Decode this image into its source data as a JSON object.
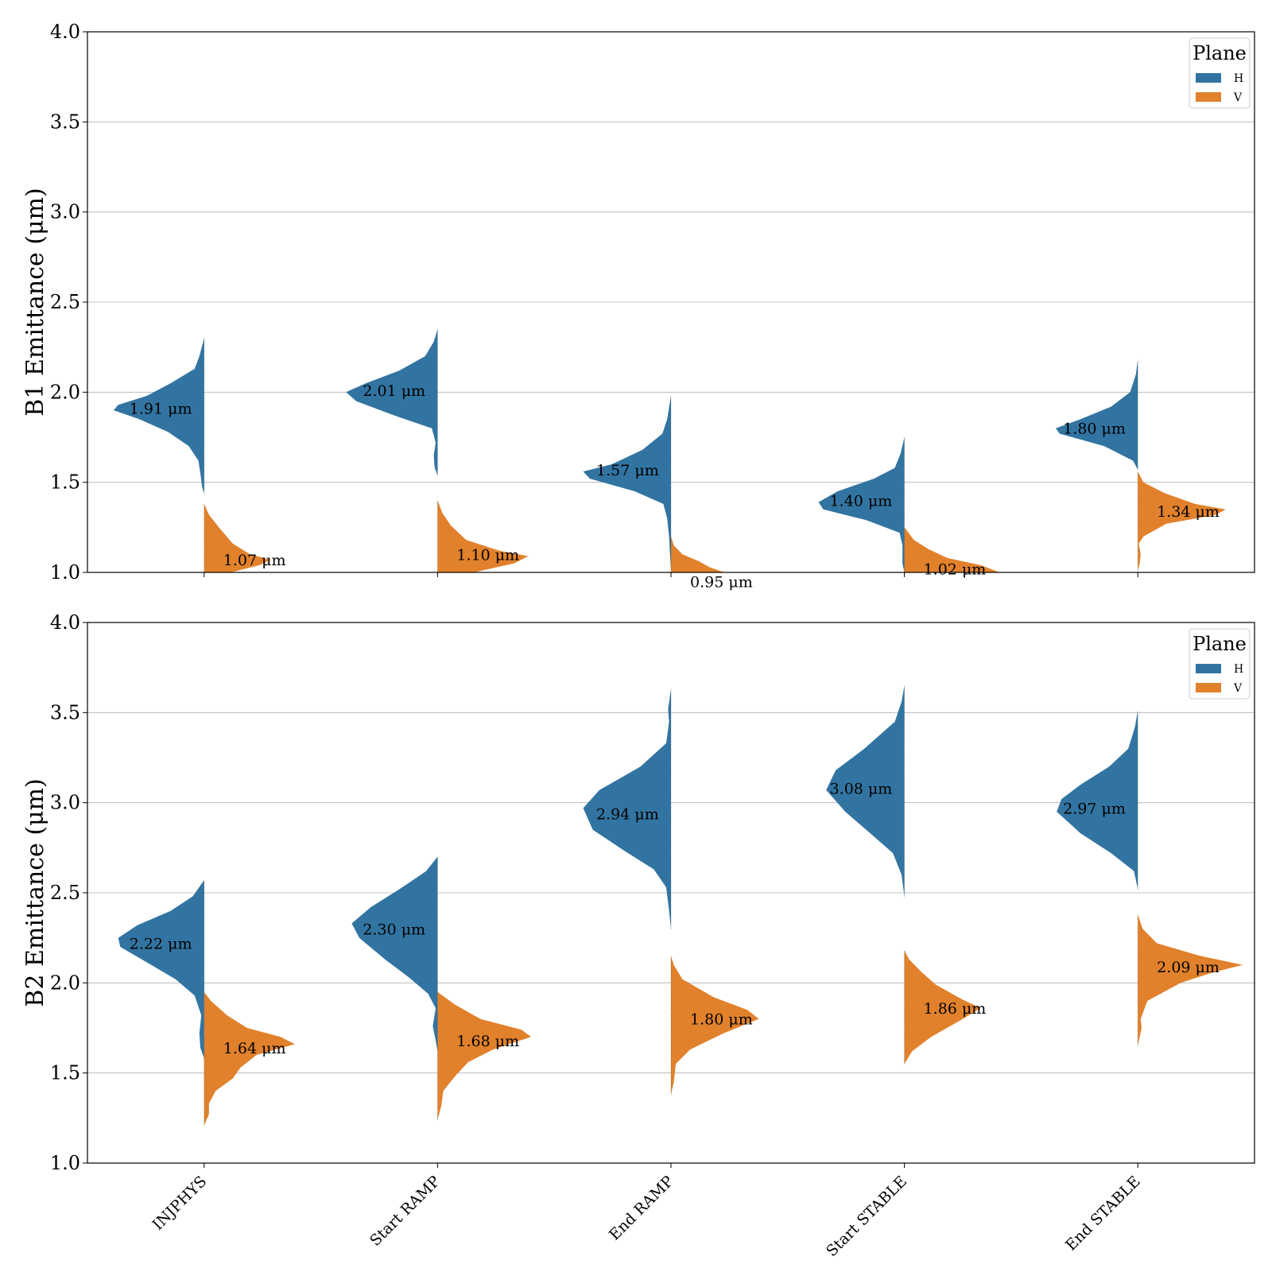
{
  "chart_data": [
    {
      "type": "violin",
      "ylabel": "B1 Emittance (μm)",
      "ylim": [
        1.0,
        4.0
      ],
      "yticks": [
        "1.0",
        "1.5",
        "2.0",
        "2.5",
        "3.0",
        "3.5",
        "4.0"
      ],
      "grid": "y",
      "categories": [
        "INJPHYS",
        "Start RAMP",
        "End RAMP",
        "Start STABLE",
        "End STABLE"
      ],
      "show_category_labels": false,
      "legend": {
        "title": "Plane",
        "position": "top-right",
        "entries": [
          "H",
          "V"
        ]
      },
      "series": [
        {
          "name": "H",
          "side": "left",
          "color": "#3274a1",
          "medians": [
            1.91,
            2.01,
            1.57,
            1.4,
            1.8
          ],
          "labels": [
            "1.91 μm",
            "2.01 μm",
            "1.57 μm",
            "1.40 μm",
            "1.80 μm"
          ],
          "shapes": [
            [
              [
                1.44,
                0
              ],
              [
                1.47,
                0.02
              ],
              [
                1.55,
                0.04
              ],
              [
                1.62,
                0.06
              ],
              [
                1.7,
                0.16
              ],
              [
                1.78,
                0.38
              ],
              [
                1.85,
                0.68
              ],
              [
                1.9,
                0.95
              ],
              [
                1.93,
                0.9
              ],
              [
                1.98,
                0.6
              ],
              [
                2.05,
                0.35
              ],
              [
                2.13,
                0.1
              ],
              [
                2.2,
                0.05
              ],
              [
                2.3,
                0
              ]
            ],
            [
              [
                1.54,
                0
              ],
              [
                1.58,
                0.03
              ],
              [
                1.65,
                0.04
              ],
              [
                1.72,
                0.02
              ],
              [
                1.8,
                0.06
              ],
              [
                1.87,
                0.45
              ],
              [
                1.95,
                0.85
              ],
              [
                2.0,
                0.96
              ],
              [
                2.05,
                0.75
              ],
              [
                2.12,
                0.4
              ],
              [
                2.2,
                0.13
              ],
              [
                2.28,
                0.04
              ],
              [
                2.35,
                0
              ]
            ],
            [
              [
                1.02,
                0
              ],
              [
                1.1,
                0.01
              ],
              [
                1.2,
                0.02
              ],
              [
                1.3,
                0.04
              ],
              [
                1.38,
                0.08
              ],
              [
                1.45,
                0.38
              ],
              [
                1.52,
                0.85
              ],
              [
                1.56,
                0.92
              ],
              [
                1.6,
                0.62
              ],
              [
                1.68,
                0.3
              ],
              [
                1.77,
                0.09
              ],
              [
                1.85,
                0.04
              ],
              [
                1.98,
                0
              ]
            ],
            [
              [
                1.0,
                0
              ],
              [
                1.05,
                0.02
              ],
              [
                1.15,
                0.02
              ],
              [
                1.22,
                0.05
              ],
              [
                1.29,
                0.4
              ],
              [
                1.35,
                0.85
              ],
              [
                1.39,
                0.9
              ],
              [
                1.45,
                0.7
              ],
              [
                1.52,
                0.32
              ],
              [
                1.58,
                0.1
              ],
              [
                1.66,
                0.04
              ],
              [
                1.75,
                0
              ]
            ],
            [
              [
                1.57,
                0
              ],
              [
                1.62,
                0.05
              ],
              [
                1.7,
                0.35
              ],
              [
                1.77,
                0.82
              ],
              [
                1.8,
                0.86
              ],
              [
                1.85,
                0.6
              ],
              [
                1.92,
                0.28
              ],
              [
                2.0,
                0.08
              ],
              [
                2.1,
                0.02
              ],
              [
                2.18,
                0
              ]
            ]
          ]
        },
        {
          "name": "V",
          "side": "right",
          "color": "#e1812c",
          "medians": [
            1.07,
            1.1,
            0.95,
            1.02,
            1.34
          ],
          "labels": [
            "1.07 μm",
            "1.10 μm",
            "0.95 μm",
            "1.02 μm",
            "1.34 μm"
          ],
          "shapes": [
            [
              [
                1.0,
                0.28
              ],
              [
                1.04,
                0.58
              ],
              [
                1.07,
                0.7
              ],
              [
                1.1,
                0.48
              ],
              [
                1.16,
                0.3
              ],
              [
                1.24,
                0.17
              ],
              [
                1.32,
                0.05
              ],
              [
                1.38,
                0
              ]
            ],
            [
              [
                1.0,
                0.38
              ],
              [
                1.05,
                0.8
              ],
              [
                1.09,
                0.95
              ],
              [
                1.12,
                0.65
              ],
              [
                1.18,
                0.3
              ],
              [
                1.26,
                0.14
              ],
              [
                1.33,
                0.05
              ],
              [
                1.4,
                0
              ]
            ],
            [
              [
                1.0,
                0.56
              ],
              [
                1.03,
                0.4
              ],
              [
                1.06,
                0.3
              ],
              [
                1.1,
                0.12
              ],
              [
                1.15,
                0.03
              ],
              [
                1.2,
                0
              ]
            ],
            [
              [
                1.0,
                1.0
              ],
              [
                1.04,
                0.8
              ],
              [
                1.08,
                0.45
              ],
              [
                1.13,
                0.25
              ],
              [
                1.18,
                0.1
              ],
              [
                1.25,
                0
              ]
            ],
            [
              [
                1.01,
                0
              ],
              [
                1.05,
                0.02
              ],
              [
                1.1,
                0.03
              ],
              [
                1.16,
                0.01
              ],
              [
                1.2,
                0.06
              ],
              [
                1.27,
                0.3
              ],
              [
                1.32,
                0.82
              ],
              [
                1.35,
                0.92
              ],
              [
                1.38,
                0.6
              ],
              [
                1.44,
                0.28
              ],
              [
                1.5,
                0.06
              ],
              [
                1.56,
                0
              ]
            ]
          ]
        }
      ]
    },
    {
      "type": "violin",
      "ylabel": "B2 Emittance (μm)",
      "ylim": [
        1.0,
        4.0
      ],
      "yticks": [
        "1.0",
        "1.5",
        "2.0",
        "2.5",
        "3.0",
        "3.5",
        "4.0"
      ],
      "grid": "y",
      "categories": [
        "INJPHYS",
        "Start RAMP",
        "End RAMP",
        "Start STABLE",
        "End STABLE"
      ],
      "show_category_labels": true,
      "legend": {
        "title": "Plane",
        "position": "top-right",
        "entries": [
          "H",
          "V"
        ]
      },
      "series": [
        {
          "name": "H",
          "side": "left",
          "color": "#3274a1",
          "medians": [
            2.22,
            2.3,
            2.94,
            3.08,
            2.97
          ],
          "labels": [
            "2.22 μm",
            "2.30 μm",
            "2.94 μm",
            "3.08 μm",
            "2.97 μm"
          ],
          "shapes": [
            [
              [
                1.58,
                0
              ],
              [
                1.64,
                0.04
              ],
              [
                1.72,
                0.05
              ],
              [
                1.82,
                0.03
              ],
              [
                1.93,
                0.1
              ],
              [
                2.02,
                0.3
              ],
              [
                2.12,
                0.62
              ],
              [
                2.2,
                0.88
              ],
              [
                2.25,
                0.9
              ],
              [
                2.32,
                0.7
              ],
              [
                2.4,
                0.35
              ],
              [
                2.48,
                0.12
              ],
              [
                2.57,
                0
              ]
            ],
            [
              [
                1.62,
                0
              ],
              [
                1.68,
                0.02
              ],
              [
                1.76,
                0.05
              ],
              [
                1.86,
                0.02
              ],
              [
                1.94,
                0.1
              ],
              [
                2.03,
                0.3
              ],
              [
                2.13,
                0.55
              ],
              [
                2.25,
                0.82
              ],
              [
                2.33,
                0.9
              ],
              [
                2.42,
                0.7
              ],
              [
                2.52,
                0.4
              ],
              [
                2.62,
                0.12
              ],
              [
                2.7,
                0
              ]
            ],
            [
              [
                2.3,
                0
              ],
              [
                2.4,
                0.02
              ],
              [
                2.53,
                0.05
              ],
              [
                2.63,
                0.18
              ],
              [
                2.73,
                0.48
              ],
              [
                2.85,
                0.82
              ],
              [
                2.97,
                0.92
              ],
              [
                3.07,
                0.75
              ],
              [
                3.2,
                0.32
              ],
              [
                3.33,
                0.05
              ],
              [
                3.45,
                0.02
              ],
              [
                3.52,
                0.03
              ],
              [
                3.63,
                0
              ]
            ],
            [
              [
                2.48,
                0
              ],
              [
                2.6,
                0.03
              ],
              [
                2.72,
                0.12
              ],
              [
                2.84,
                0.38
              ],
              [
                2.95,
                0.62
              ],
              [
                3.07,
                0.82
              ],
              [
                3.18,
                0.72
              ],
              [
                3.3,
                0.42
              ],
              [
                3.45,
                0.1
              ],
              [
                3.56,
                0.03
              ],
              [
                3.65,
                0
              ]
            ],
            [
              [
                2.52,
                0
              ],
              [
                2.62,
                0.04
              ],
              [
                2.72,
                0.28
              ],
              [
                2.83,
                0.6
              ],
              [
                2.95,
                0.85
              ],
              [
                3.02,
                0.8
              ],
              [
                3.1,
                0.6
              ],
              [
                3.2,
                0.3
              ],
              [
                3.3,
                0.1
              ],
              [
                3.42,
                0.03
              ],
              [
                3.51,
                0
              ]
            ]
          ]
        },
        {
          "name": "V",
          "side": "right",
          "color": "#e1812c",
          "medians": [
            1.64,
            1.68,
            1.8,
            1.86,
            2.09
          ],
          "labels": [
            "1.64 μm",
            "1.68 μm",
            "1.80 μm",
            "1.86 μm",
            "2.09 μm"
          ],
          "shapes": [
            [
              [
                1.21,
                0
              ],
              [
                1.27,
                0.05
              ],
              [
                1.33,
                0.05
              ],
              [
                1.4,
                0.12
              ],
              [
                1.47,
                0.3
              ],
              [
                1.53,
                0.38
              ],
              [
                1.6,
                0.55
              ],
              [
                1.66,
                0.95
              ],
              [
                1.7,
                0.8
              ],
              [
                1.75,
                0.45
              ],
              [
                1.82,
                0.24
              ],
              [
                1.9,
                0.07
              ],
              [
                1.95,
                0
              ]
            ],
            [
              [
                1.24,
                0
              ],
              [
                1.32,
                0.04
              ],
              [
                1.4,
                0.06
              ],
              [
                1.48,
                0.18
              ],
              [
                1.56,
                0.32
              ],
              [
                1.63,
                0.58
              ],
              [
                1.7,
                0.98
              ],
              [
                1.74,
                0.88
              ],
              [
                1.8,
                0.45
              ],
              [
                1.88,
                0.18
              ],
              [
                1.95,
                0
              ]
            ],
            [
              [
                1.38,
                0
              ],
              [
                1.45,
                0.03
              ],
              [
                1.55,
                0.05
              ],
              [
                1.63,
                0.2
              ],
              [
                1.72,
                0.55
              ],
              [
                1.8,
                0.92
              ],
              [
                1.85,
                0.8
              ],
              [
                1.92,
                0.45
              ],
              [
                2.02,
                0.12
              ],
              [
                2.1,
                0.03
              ],
              [
                2.15,
                0
              ]
            ],
            [
              [
                1.55,
                0
              ],
              [
                1.62,
                0.08
              ],
              [
                1.7,
                0.28
              ],
              [
                1.79,
                0.58
              ],
              [
                1.86,
                0.8
              ],
              [
                1.91,
                0.6
              ],
              [
                1.99,
                0.33
              ],
              [
                2.06,
                0.18
              ],
              [
                2.13,
                0.05
              ],
              [
                2.18,
                0
              ]
            ],
            [
              [
                1.65,
                0
              ],
              [
                1.7,
                0.02
              ],
              [
                1.75,
                0.04
              ],
              [
                1.8,
                0.03
              ],
              [
                1.9,
                0.1
              ],
              [
                2.0,
                0.45
              ],
              [
                2.06,
                0.8
              ],
              [
                2.1,
                1.1
              ],
              [
                2.15,
                0.65
              ],
              [
                2.22,
                0.2
              ],
              [
                2.3,
                0.05
              ],
              [
                2.38,
                0
              ]
            ]
          ]
        }
      ]
    }
  ]
}
